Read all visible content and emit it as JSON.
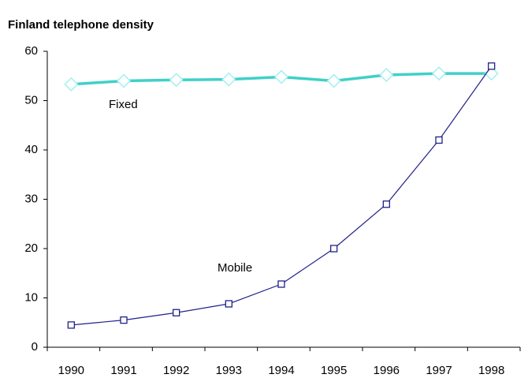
{
  "chart_data": {
    "type": "line",
    "title": "Finland telephone density",
    "categories": [
      "1990",
      "1991",
      "1992",
      "1993",
      "1994",
      "1995",
      "1996",
      "1997",
      "1998"
    ],
    "series": [
      {
        "name": "Fixed",
        "color": "#40d0c8",
        "values": [
          53.3,
          54,
          54.2,
          54.3,
          54.8,
          54,
          55.2,
          55.5,
          55.5
        ]
      },
      {
        "name": "Mobile",
        "color": "#20208a",
        "values": [
          4.5,
          5.5,
          7,
          8.8,
          12.8,
          20,
          29,
          42,
          57
        ]
      }
    ],
    "ylim": [
      0,
      60
    ],
    "yticks": [
      0,
      10,
      20,
      30,
      40,
      50,
      60
    ],
    "grid": false
  }
}
